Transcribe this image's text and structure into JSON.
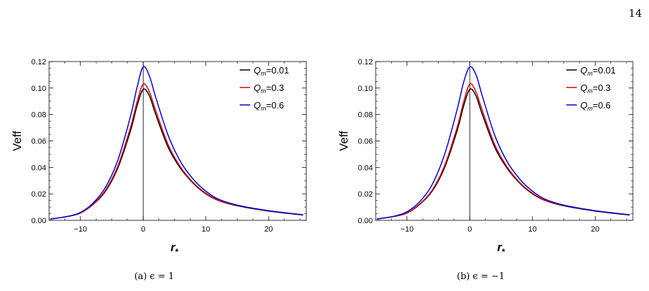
{
  "page": {
    "number": "14"
  },
  "figures": [
    {
      "caption": "(a) ϵ = 1"
    },
    {
      "caption": "(b) ϵ = −1"
    }
  ],
  "chart_data": [
    {
      "type": "line",
      "xlabel": "r*",
      "ylabel": "Veff",
      "xlim": [
        -15,
        26
      ],
      "ylim": [
        0,
        0.12
      ],
      "xticks": [
        -10,
        0,
        10,
        20
      ],
      "xtick_labels": [
        "−10",
        "0",
        "10",
        "20"
      ],
      "yticks": [
        0,
        0.02,
        0.04,
        0.06,
        0.08,
        0.1,
        0.12
      ],
      "ytick_labels": [
        "0.00",
        "0.02",
        "0.04",
        "0.06",
        "0.08",
        "0.10",
        "0.12"
      ],
      "grid": false,
      "legend_position": "top-right",
      "vertical_line_x": 0,
      "series": [
        {
          "name": "Qm=0.01",
          "legend_base": "Q",
          "legend_sub": "m",
          "legend_value": "=0.01",
          "color": "#000000",
          "x": [
            -14.8,
            -12,
            -10,
            -8,
            -6,
            -4,
            -2,
            -1,
            0,
            1,
            2,
            4,
            6,
            8,
            10,
            12,
            15,
            20,
            25.5
          ],
          "y": [
            0.001,
            0.003,
            0.0055,
            0.012,
            0.022,
            0.04,
            0.068,
            0.086,
            0.099,
            0.094,
            0.08,
            0.055,
            0.039,
            0.028,
            0.02,
            0.015,
            0.011,
            0.007,
            0.004
          ]
        },
        {
          "name": "Qm=0.3",
          "legend_base": "Q",
          "legend_sub": "m",
          "legend_value": "=0.3",
          "color": "#e00000",
          "x": [
            -14.8,
            -12,
            -10,
            -8,
            -6,
            -4,
            -2,
            -1,
            0,
            1,
            2,
            4,
            6,
            8,
            10,
            12,
            15,
            20,
            25.5
          ],
          "y": [
            0.001,
            0.003,
            0.0056,
            0.0123,
            0.0228,
            0.0415,
            0.0705,
            0.089,
            0.103,
            0.097,
            0.083,
            0.057,
            0.04,
            0.0285,
            0.0205,
            0.0152,
            0.0112,
            0.0072,
            0.0041
          ]
        },
        {
          "name": "Qm=0.6",
          "legend_base": "Q",
          "legend_sub": "m",
          "legend_value": "=0.6",
          "color": "#0000dd",
          "x": [
            -14.8,
            -12,
            -10,
            -8,
            -6,
            -4,
            -2,
            -1,
            0,
            1,
            2,
            4,
            6,
            8,
            10,
            12,
            15,
            20,
            25.5
          ],
          "y": [
            0.001,
            0.003,
            0.006,
            0.013,
            0.025,
            0.046,
            0.079,
            0.1,
            0.116,
            0.109,
            0.093,
            0.064,
            0.044,
            0.031,
            0.022,
            0.016,
            0.0115,
            0.0073,
            0.0042
          ]
        }
      ]
    },
    {
      "type": "line",
      "xlabel": "r*",
      "ylabel": "Veff",
      "xlim": [
        -15,
        26
      ],
      "ylim": [
        0,
        0.12
      ],
      "xticks": [
        -10,
        0,
        10,
        20
      ],
      "xtick_labels": [
        "−10",
        "0",
        "10",
        "20"
      ],
      "yticks": [
        0,
        0.02,
        0.04,
        0.06,
        0.08,
        0.1,
        0.12
      ],
      "ytick_labels": [
        "0.00",
        "0.02",
        "0.04",
        "0.06",
        "0.08",
        "0.10",
        "0.12"
      ],
      "grid": false,
      "legend_position": "top-right",
      "vertical_line_x": 0,
      "series": [
        {
          "name": "Qm=0.01",
          "legend_base": "Q",
          "legend_sub": "m",
          "legend_value": "=0.01",
          "color": "#000000",
          "x": [
            -14.8,
            -12,
            -10,
            -8,
            -6,
            -4,
            -2,
            -1,
            0,
            1,
            2,
            4,
            6,
            8,
            10,
            12,
            15,
            20,
            25.5
          ],
          "y": [
            0.001,
            0.003,
            0.0055,
            0.012,
            0.022,
            0.04,
            0.068,
            0.086,
            0.099,
            0.094,
            0.08,
            0.055,
            0.039,
            0.028,
            0.02,
            0.015,
            0.011,
            0.007,
            0.004
          ]
        },
        {
          "name": "Qm=0.3",
          "legend_base": "Q",
          "legend_sub": "m",
          "legend_value": "=0.3",
          "color": "#e00000",
          "x": [
            -14.8,
            -12,
            -10,
            -8,
            -6,
            -4,
            -2,
            -1,
            0,
            1,
            2,
            4,
            6,
            8,
            10,
            12,
            15,
            20,
            25.5
          ],
          "y": [
            0.001,
            0.003,
            0.0056,
            0.0123,
            0.0228,
            0.0415,
            0.0705,
            0.089,
            0.103,
            0.097,
            0.083,
            0.057,
            0.04,
            0.0285,
            0.0205,
            0.0152,
            0.0112,
            0.0072,
            0.0041
          ]
        },
        {
          "name": "Qm=0.6",
          "legend_base": "Q",
          "legend_sub": "m",
          "legend_value": "=0.6",
          "color": "#0000dd",
          "x": [
            -14.8,
            -12,
            -10,
            -8,
            -6,
            -4,
            -2,
            -1,
            0,
            1,
            2,
            4,
            6,
            8,
            10,
            12,
            15,
            20,
            25.5
          ],
          "y": [
            0.001,
            0.0032,
            0.0065,
            0.014,
            0.027,
            0.05,
            0.084,
            0.104,
            0.116,
            0.11,
            0.094,
            0.064,
            0.044,
            0.031,
            0.022,
            0.016,
            0.0115,
            0.0073,
            0.0042
          ]
        }
      ]
    }
  ]
}
